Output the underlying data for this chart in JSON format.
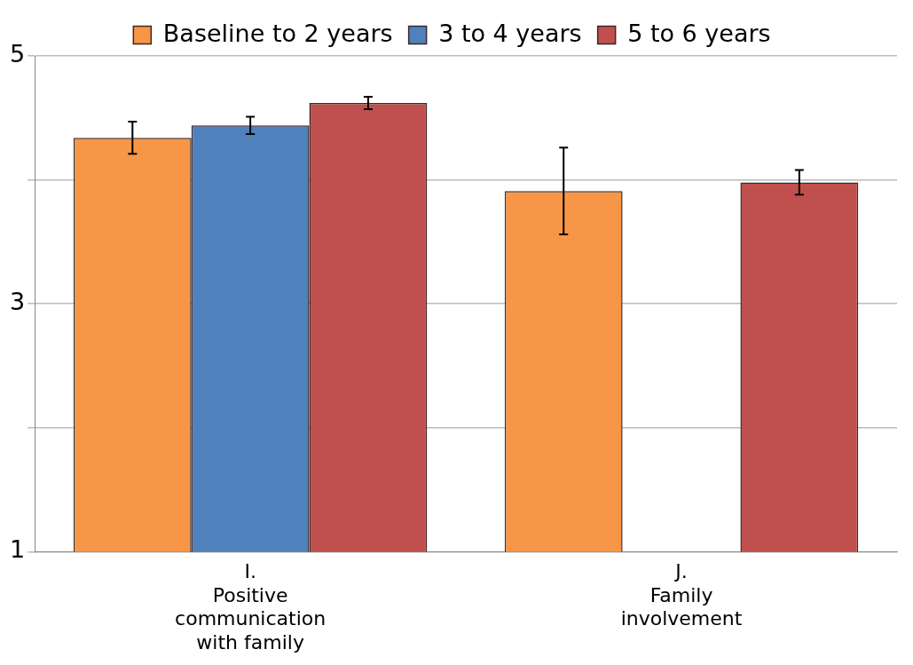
{
  "chart_data": {
    "type": "bar",
    "categories": [
      "I.\nPositive\ncommunication\nwith family",
      "J.\nFamily\ninvolvement"
    ],
    "series": [
      {
        "name": "Baseline to 2 years",
        "color": "#f79646",
        "values": [
          4.34,
          3.91
        ],
        "errors": [
          0.13,
          0.35
        ]
      },
      {
        "name": "3 to 4 years",
        "color": "#4f81bd",
        "values": [
          4.44,
          null
        ],
        "errors": [
          0.07,
          null
        ]
      },
      {
        "name": "5 to 6 years",
        "color": "#c0504d",
        "values": [
          4.62,
          3.98
        ],
        "errors": [
          0.05,
          0.1
        ]
      }
    ],
    "ylim": [
      1,
      5
    ],
    "yticks": [
      1,
      {
        "value": 2,
        "label": null
      },
      3,
      {
        "value": 4,
        "label": null
      },
      5
    ],
    "grid": "y",
    "legend": "top"
  }
}
